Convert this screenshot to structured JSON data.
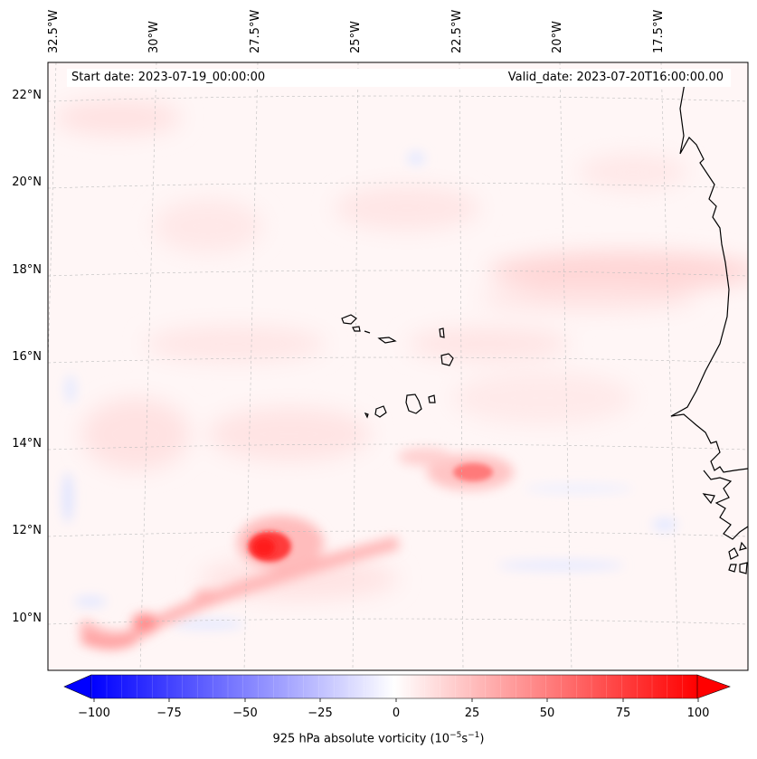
{
  "map": {
    "start_date": "Start date: 2023-07-19_00:00:00",
    "valid_date": "Valid_date: 2023-07-20T16:00:00.00",
    "lon_labels": [
      "32.5°W",
      "30°W",
      "27.5°W",
      "25°W",
      "22.5°W",
      "20°W",
      "17.5°W"
    ],
    "lat_labels": [
      "22°N",
      "20°N",
      "18°N",
      "16°N",
      "14°N",
      "12°N",
      "10°N"
    ],
    "features": [
      "Cape Verde islands",
      "West African coastline",
      "vorticity maximum near 12°N 27.5°W",
      "vorticity maximum near 13.5°N 23°W"
    ]
  },
  "colorbar": {
    "title": "925 hPa absolute vorticity (10",
    "title_exp1": "−5",
    "title_mid": "s",
    "title_exp2": "−1",
    "title_end": ")",
    "ticks": [
      "−100",
      "−75",
      "−50",
      "−25",
      "0",
      "25",
      "50",
      "75",
      "100"
    ],
    "min": -100,
    "max": 100,
    "colors": {
      "negative": "#0000ff",
      "zero": "#ffffff",
      "positive": "#ff0000"
    }
  }
}
